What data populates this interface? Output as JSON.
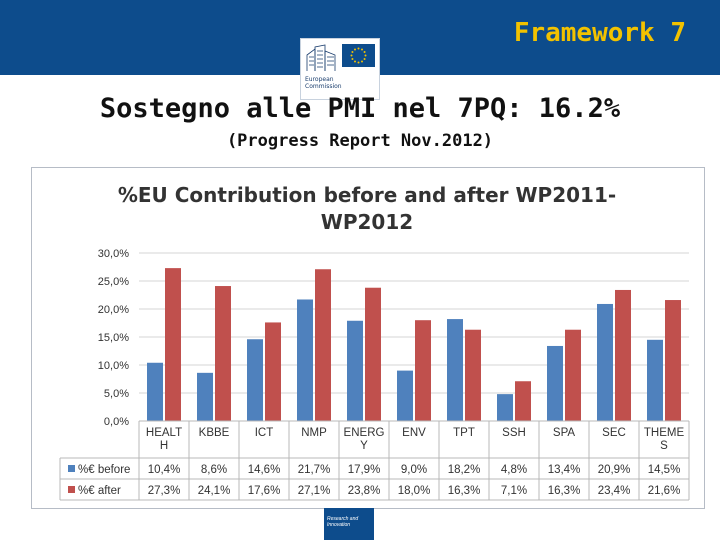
{
  "header": {
    "framework": "Framework 7",
    "logo_text_1": "European",
    "logo_text_2": "Commission"
  },
  "title": "Sostegno alle PMI nel 7PQ: 16.2%",
  "subtitle": "(Progress Report Nov.2012)",
  "footer": {
    "text_1": "Research and",
    "text_2": "Innovation"
  },
  "colors": {
    "band": "#0d4c8c",
    "accent": "#f2c200",
    "before": "#4f81bd",
    "after": "#c0504d"
  },
  "chart_data": {
    "type": "bar",
    "title_line1": "%EU Contribution before and after WP2011-",
    "title_line2": "WP2012",
    "categories": [
      [
        "HEALT",
        "H"
      ],
      [
        "KBBE"
      ],
      [
        "ICT"
      ],
      [
        "NMP"
      ],
      [
        "ENERG",
        "Y"
      ],
      [
        "ENV"
      ],
      [
        "TPT"
      ],
      [
        "SSH"
      ],
      [
        "SPA"
      ],
      [
        "SEC"
      ],
      [
        "THEME",
        "S"
      ]
    ],
    "series": [
      {
        "name": "%€ before",
        "values": [
          10.4,
          8.6,
          14.6,
          21.7,
          17.9,
          9.0,
          18.2,
          4.8,
          13.4,
          20.9,
          14.5
        ],
        "labels": [
          "10,4%",
          "8,6%",
          "14,6%",
          "21,7%",
          "17,9%",
          "9,0%",
          "18,2%",
          "4,8%",
          "13,4%",
          "20,9%",
          "14,5%"
        ]
      },
      {
        "name": "%€ after",
        "values": [
          27.3,
          24.1,
          17.6,
          27.1,
          23.8,
          18.0,
          16.3,
          7.1,
          16.3,
          23.4,
          21.6
        ],
        "labels": [
          "27,3%",
          "24,1%",
          "17,6%",
          "27,1%",
          "23,8%",
          "18,0%",
          "16,3%",
          "7,1%",
          "16,3%",
          "23,4%",
          "21,6%"
        ]
      }
    ],
    "yticks": [
      0,
      5,
      10,
      15,
      20,
      25,
      30
    ],
    "ytick_labels": [
      "0,0%",
      "5,0%",
      "10,0%",
      "15,0%",
      "20,0%",
      "25,0%",
      "30,0%"
    ],
    "ylim": [
      0,
      30
    ],
    "grid": true,
    "legend": "data-table-below"
  }
}
